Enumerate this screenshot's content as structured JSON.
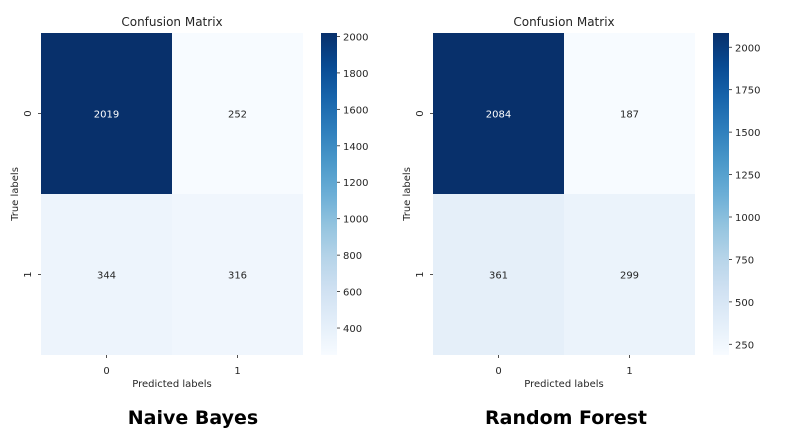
{
  "chart_data": [
    {
      "type": "heatmap",
      "title": "Confusion Matrix",
      "xlabel": "Predicted labels",
      "ylabel": "True labels",
      "x_categories": [
        "0",
        "1"
      ],
      "y_categories": [
        "0",
        "1"
      ],
      "values": [
        [
          2019,
          252
        ],
        [
          344,
          316
        ]
      ],
      "colormap": "Blues",
      "colorbar": {
        "min": 252,
        "max": 2019,
        "ticks": [
          400,
          600,
          800,
          1000,
          1200,
          1400,
          1600,
          1800,
          2000
        ]
      },
      "caption": "Naive Bayes"
    },
    {
      "type": "heatmap",
      "title": "Confusion Matrix",
      "xlabel": "Predicted labels",
      "ylabel": "True labels",
      "x_categories": [
        "0",
        "1"
      ],
      "y_categories": [
        "0",
        "1"
      ],
      "values": [
        [
          2084,
          187
        ],
        [
          361,
          299
        ]
      ],
      "colormap": "Blues",
      "colorbar": {
        "min": 187,
        "max": 2084,
        "ticks": [
          250,
          500,
          750,
          1000,
          1250,
          1500,
          1750,
          2000
        ]
      },
      "caption": "Random Forest"
    }
  ]
}
